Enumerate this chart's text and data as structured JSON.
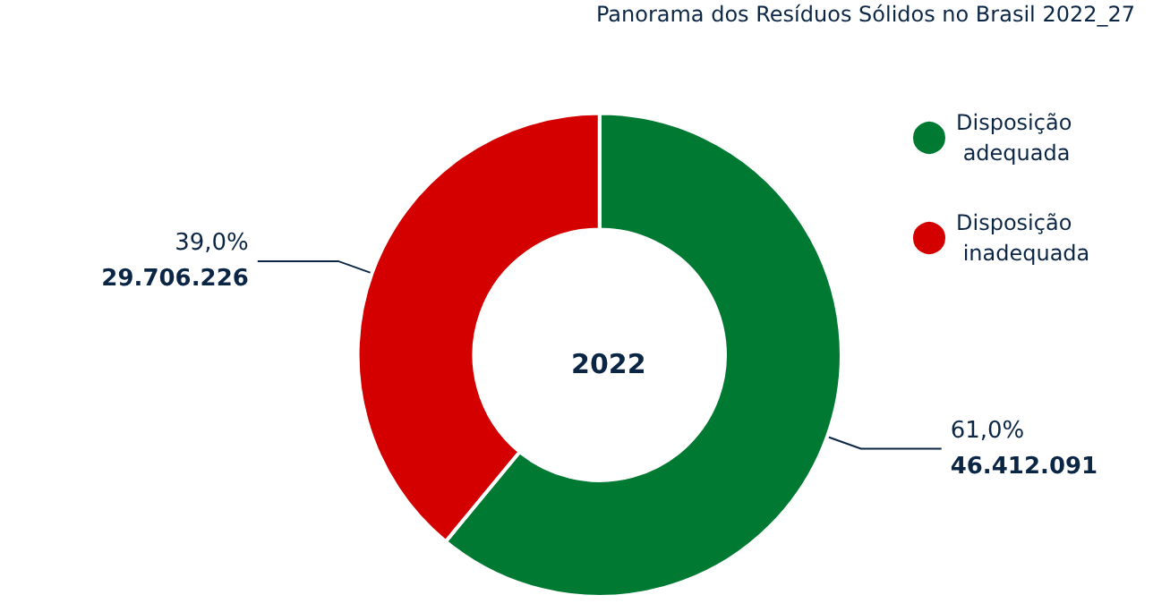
{
  "chart_data": {
    "type": "donut",
    "title": "2022",
    "categories": [
      "Disposição adequada",
      "Disposição inadequada"
    ],
    "values": [
      46412091,
      29706226
    ],
    "colors": [
      "#007a33",
      "#d40000"
    ],
    "value_labels": [
      "61,0%\n46.412.091",
      "39,0%\n29.706.226"
    ],
    "legend": "top right",
    "annotations": [
      "Panorama dos Resíduos Sólidos no Brasil 2022_27"
    ]
  }
}
